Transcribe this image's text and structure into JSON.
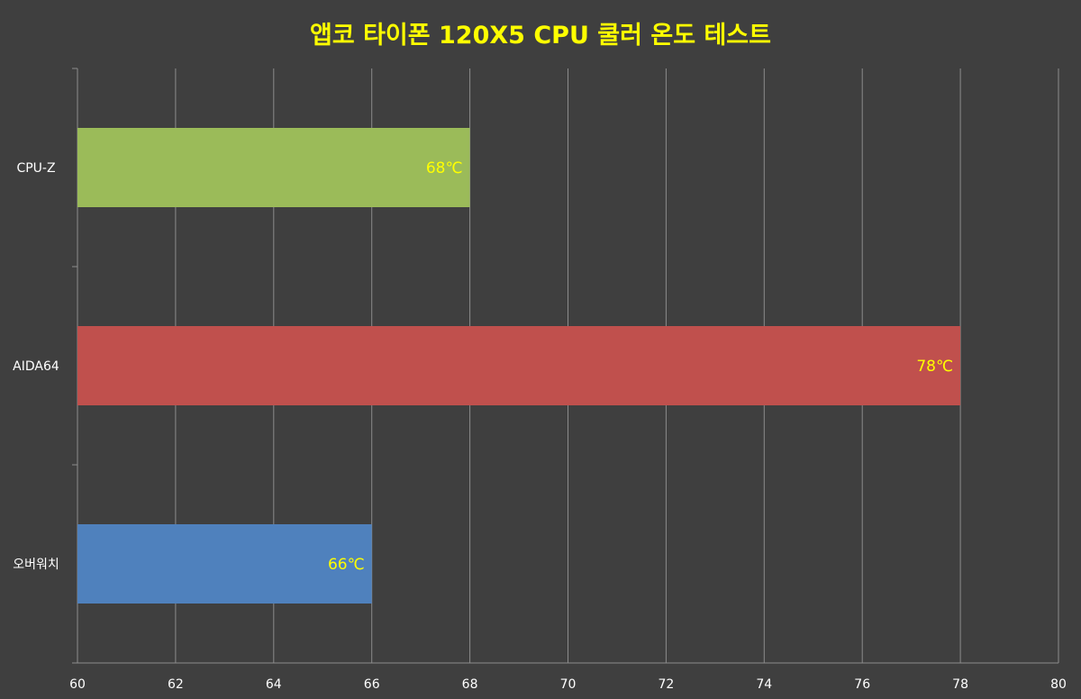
{
  "chart_data": {
    "type": "bar",
    "orientation": "horizontal",
    "title": "앱코 타이폰 120X5 CPU 쿨러 온도 테스트",
    "categories": [
      "CPU-Z",
      "AIDA64",
      "오버워치"
    ],
    "values": [
      68,
      78,
      66
    ],
    "data_labels": [
      "68℃",
      "78℃",
      "66℃"
    ],
    "bar_colors": [
      "#9bbb59",
      "#c0504d",
      "#4f81bd"
    ],
    "xlim": [
      60,
      80
    ],
    "x_ticks": [
      "60",
      "62",
      "64",
      "66",
      "68",
      "70",
      "72",
      "74",
      "76",
      "78",
      "80"
    ],
    "grid": true,
    "legend": "none"
  },
  "colors": {
    "background": "#3f3f3f",
    "title": "#ffff00",
    "data_label": "#ffff00",
    "axis_text": "#ffffff",
    "gridline": "#8c8c8c"
  }
}
